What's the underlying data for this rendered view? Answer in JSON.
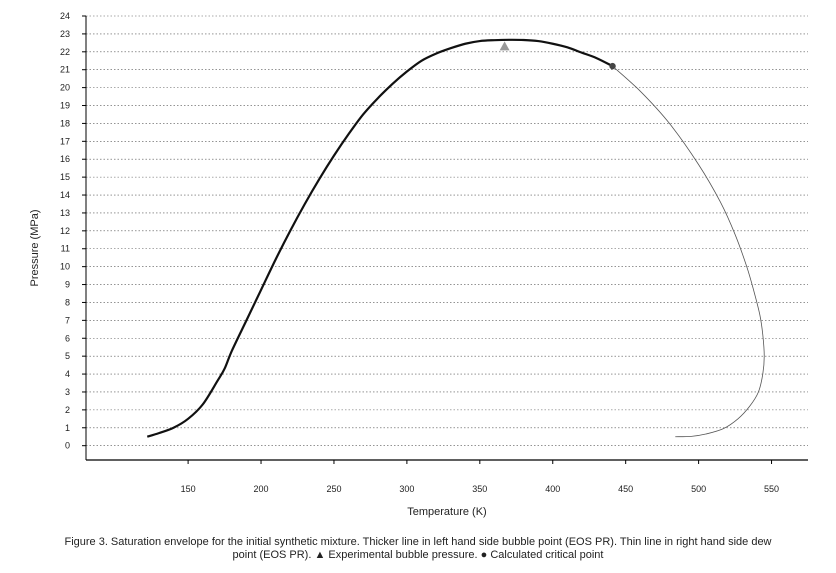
{
  "chart_data": {
    "type": "line",
    "title": "",
    "xlabel": "Temperature (K)",
    "ylabel": "Pressure (MPa)",
    "xlim": [
      80,
      575
    ],
    "ylim": [
      -0.8,
      24
    ],
    "xticks": [
      150,
      200,
      250,
      300,
      350,
      400,
      450,
      500,
      550
    ],
    "yticks": [
      0,
      1,
      2,
      3,
      4,
      5,
      6,
      7,
      8,
      9,
      10,
      11,
      12,
      13,
      14,
      15,
      16,
      17,
      18,
      19,
      20,
      21,
      22,
      23,
      24
    ],
    "grid": "horizontal dotted",
    "series": [
      {
        "style": "thick",
        "color": "#111111",
        "x": [
          122,
          130,
          140,
          150,
          160,
          170,
          175,
          180,
          190,
          200,
          210,
          220,
          230,
          240,
          250,
          260,
          270,
          280,
          290,
          300,
          310,
          320,
          330,
          340,
          350,
          360,
          370,
          380,
          390,
          400,
          410,
          420,
          430,
          441
        ],
        "y": [
          0.5,
          0.7,
          1.0,
          1.5,
          2.3,
          3.6,
          4.3,
          5.3,
          7.0,
          8.7,
          10.4,
          12.0,
          13.5,
          14.9,
          16.2,
          17.4,
          18.5,
          19.4,
          20.2,
          20.9,
          21.5,
          21.9,
          22.2,
          22.45,
          22.6,
          22.65,
          22.67,
          22.66,
          22.6,
          22.45,
          22.25,
          21.95,
          21.65,
          21.2
        ]
      },
      {
        "style": "thin",
        "color": "#555555",
        "x": [
          441,
          460,
          480,
          500,
          515,
          525,
          533,
          538,
          542,
          544,
          545,
          544,
          541,
          535,
          527,
          517,
          505,
          495,
          484
        ],
        "y": [
          21.2,
          19.8,
          18.0,
          15.7,
          13.6,
          11.8,
          10.0,
          8.6,
          7.3,
          6.2,
          5.0,
          4.0,
          3.0,
          2.2,
          1.5,
          0.95,
          0.65,
          0.52,
          0.5
        ]
      }
    ],
    "markers": [
      {
        "type": "triangle",
        "x": 367,
        "y": 22.3,
        "color": "#999999"
      },
      {
        "type": "circle",
        "x": 441,
        "y": 21.2,
        "color": "#444444"
      }
    ]
  },
  "caption": {
    "line1": "Figure 3. Saturation envelope for the initial synthetic mixture. Thicker line in left hand side bubble point (EOS PR). Thin line in right hand side dew",
    "line2": "point (EOS PR). ▲ Experimental bubble pressure. ● Calculated critical point"
  }
}
